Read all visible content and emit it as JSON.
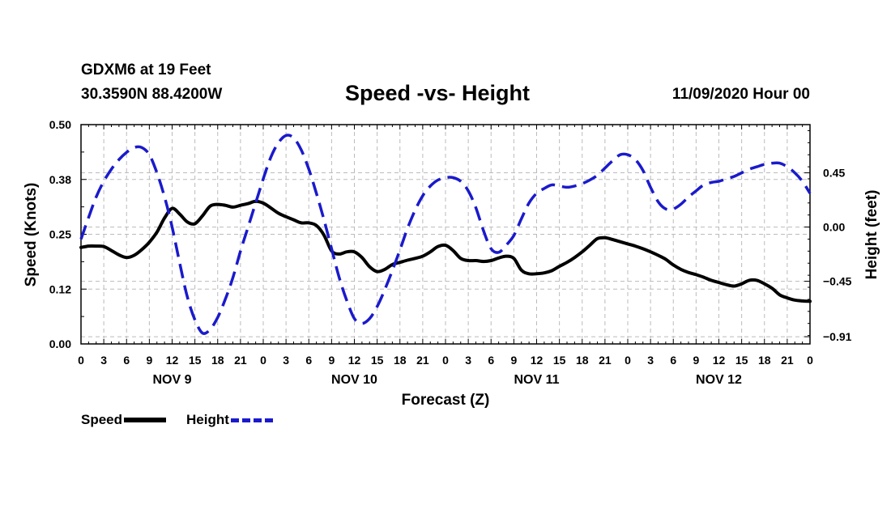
{
  "header": {
    "station": "GDXM6 at 19 Feet",
    "coordinates": "30.3590N 88.4200W",
    "title": "Speed -vs- Height",
    "datetime": "11/09/2020 Hour 00"
  },
  "colors": {
    "speed": "#000000",
    "height": "#1a1acc",
    "grid": "#bbbbbb"
  },
  "chart_data": {
    "type": "line",
    "title": "Speed -vs- Height",
    "xlabel": "Forecast (Z)",
    "ylabel": "Speed (Knots)",
    "y2label": "Height (feet)",
    "xlim": [
      0,
      96
    ],
    "ylim": [
      0,
      0.5
    ],
    "y2lim": [
      -0.97,
      0.85
    ],
    "x_tick_values": [
      0,
      3,
      6,
      9,
      12,
      15,
      18,
      21,
      24,
      27,
      30,
      33,
      36,
      39,
      42,
      45,
      48,
      51,
      54,
      57,
      60,
      63,
      66,
      69,
      72,
      75,
      78,
      81,
      84,
      87,
      90,
      93,
      96
    ],
    "x_tick_labels": [
      "0",
      "3",
      "6",
      "9",
      "12",
      "15",
      "18",
      "21",
      "0",
      "3",
      "6",
      "9",
      "12",
      "15",
      "18",
      "21",
      "0",
      "3",
      "6",
      "9",
      "12",
      "15",
      "18",
      "21",
      "0",
      "3",
      "6",
      "9",
      "12",
      "15",
      "18",
      "21",
      "0"
    ],
    "day_labels": [
      {
        "label": "NOV 9",
        "x": 12
      },
      {
        "label": "NOV 10",
        "x": 36
      },
      {
        "label": "NOV 11",
        "x": 60
      },
      {
        "label": "NOV 12",
        "x": 84
      }
    ],
    "y_ticks": [
      {
        "value": 0.0,
        "label": "0.00"
      },
      {
        "value": 0.125,
        "label": "0.12"
      },
      {
        "value": 0.25,
        "label": "0.25"
      },
      {
        "value": 0.375,
        "label": "0.38"
      },
      {
        "value": 0.5,
        "label": "0.50"
      }
    ],
    "y2_ticks": [
      {
        "value": 0.45,
        "label": "0.45"
      },
      {
        "value": 0.0,
        "label": "0.00"
      },
      {
        "value": -0.45,
        "label": "−0.45"
      },
      {
        "value": -0.91,
        "label": "−0.91"
      }
    ],
    "series": [
      {
        "name": "Speed",
        "axis": "left",
        "style": "solid",
        "x": [
          0,
          1,
          2,
          3,
          4,
          5,
          6,
          7,
          8,
          9,
          10,
          11,
          12,
          13,
          14,
          15,
          16,
          17,
          18,
          19,
          20,
          21,
          22,
          23,
          24,
          25,
          26,
          27,
          28,
          29,
          30,
          31,
          32,
          33,
          34,
          35,
          36,
          37,
          38,
          39,
          40,
          41,
          42,
          43,
          44,
          45,
          46,
          47,
          48,
          49,
          50,
          51,
          52,
          53,
          54,
          55,
          56,
          57,
          58,
          59,
          60,
          61,
          62,
          63,
          64,
          65,
          66,
          67,
          68,
          69,
          70,
          71,
          72,
          73,
          74,
          75,
          76,
          77,
          78,
          79,
          80,
          81,
          82,
          83,
          84,
          85,
          86,
          87,
          88,
          89,
          90,
          91,
          92,
          93,
          94,
          95,
          96
        ],
        "values": [
          0.22,
          0.223,
          0.223,
          0.222,
          0.213,
          0.203,
          0.197,
          0.202,
          0.215,
          0.232,
          0.255,
          0.287,
          0.309,
          0.296,
          0.278,
          0.274,
          0.292,
          0.314,
          0.318,
          0.316,
          0.312,
          0.316,
          0.32,
          0.325,
          0.321,
          0.31,
          0.298,
          0.29,
          0.283,
          0.276,
          0.276,
          0.27,
          0.248,
          0.212,
          0.205,
          0.21,
          0.21,
          0.197,
          0.176,
          0.165,
          0.17,
          0.181,
          0.186,
          0.191,
          0.195,
          0.2,
          0.21,
          0.222,
          0.225,
          0.213,
          0.195,
          0.19,
          0.19,
          0.188,
          0.19,
          0.196,
          0.2,
          0.195,
          0.168,
          0.16,
          0.16,
          0.162,
          0.167,
          0.177,
          0.186,
          0.197,
          0.21,
          0.225,
          0.24,
          0.242,
          0.238,
          0.233,
          0.228,
          0.223,
          0.217,
          0.21,
          0.202,
          0.193,
          0.18,
          0.17,
          0.163,
          0.158,
          0.152,
          0.145,
          0.14,
          0.135,
          0.132,
          0.137,
          0.145,
          0.145,
          0.137,
          0.127,
          0.112,
          0.105,
          0.1,
          0.098,
          0.097
        ]
      },
      {
        "name": "Height",
        "axis": "right",
        "style": "dashed",
        "x": [
          0,
          1,
          2,
          3,
          4,
          5,
          6,
          7,
          8,
          9,
          10,
          11,
          12,
          13,
          14,
          15,
          16,
          17,
          18,
          19,
          20,
          21,
          22,
          23,
          24,
          25,
          26,
          27,
          28,
          29,
          30,
          31,
          32,
          33,
          34,
          35,
          36,
          37,
          38,
          39,
          40,
          41,
          42,
          43,
          44,
          45,
          46,
          47,
          48,
          49,
          50,
          51,
          52,
          53,
          54,
          55,
          56,
          57,
          58,
          59,
          60,
          61,
          62,
          63,
          64,
          65,
          66,
          67,
          68,
          69,
          70,
          71,
          72,
          73,
          74,
          75,
          76,
          77,
          78,
          79,
          80,
          81,
          82,
          83,
          84,
          85,
          86,
          87,
          88,
          89,
          90,
          91,
          92,
          93,
          94,
          95,
          96
        ],
        "values": [
          -0.1,
          0.08,
          0.25,
          0.38,
          0.48,
          0.56,
          0.62,
          0.66,
          0.66,
          0.6,
          0.45,
          0.25,
          0.0,
          -0.3,
          -0.58,
          -0.77,
          -0.88,
          -0.85,
          -0.75,
          -0.6,
          -0.42,
          -0.2,
          0.0,
          0.2,
          0.4,
          0.58,
          0.7,
          0.76,
          0.74,
          0.64,
          0.48,
          0.28,
          0.06,
          -0.18,
          -0.42,
          -0.61,
          -0.76,
          -0.8,
          -0.76,
          -0.66,
          -0.52,
          -0.36,
          -0.19,
          -0.01,
          0.14,
          0.26,
          0.34,
          0.39,
          0.41,
          0.41,
          0.38,
          0.3,
          0.16,
          -0.03,
          -0.18,
          -0.21,
          -0.15,
          -0.07,
          0.07,
          0.2,
          0.28,
          0.32,
          0.35,
          0.34,
          0.33,
          0.34,
          0.36,
          0.39,
          0.43,
          0.49,
          0.55,
          0.6,
          0.6,
          0.56,
          0.47,
          0.33,
          0.21,
          0.15,
          0.15,
          0.19,
          0.25,
          0.3,
          0.35,
          0.37,
          0.38,
          0.4,
          0.42,
          0.45,
          0.48,
          0.5,
          0.52,
          0.53,
          0.53,
          0.5,
          0.45,
          0.38,
          0.28
        ]
      }
    ]
  },
  "legend": {
    "items": [
      {
        "label": "Speed"
      },
      {
        "label": "Height"
      }
    ]
  }
}
